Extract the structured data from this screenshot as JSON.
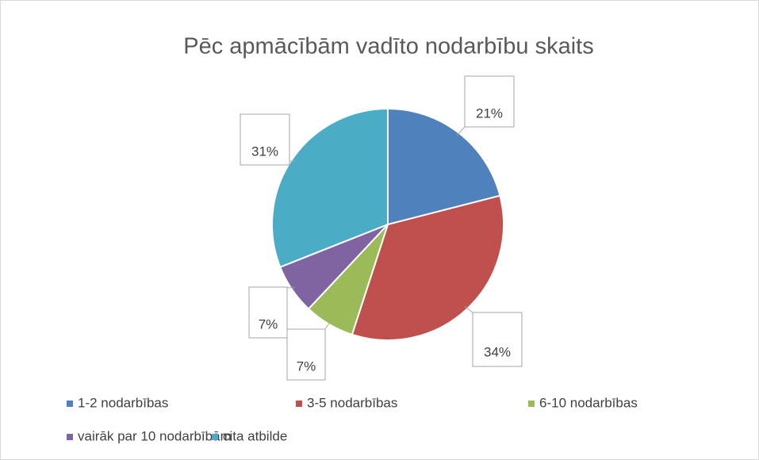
{
  "chart_data": {
    "type": "pie",
    "title": "Pēc apmācībām vadīto nodarbību skaits",
    "categories": [
      "1-2 nodarbības",
      "3-5 nodarbības",
      "6-10 nodarbības",
      "vairāk par 10 nodarbībām",
      "cita atbilde"
    ],
    "values": [
      21,
      34,
      7,
      7,
      31
    ],
    "value_labels": [
      "21%",
      "34%",
      "7%",
      "7%",
      "31%"
    ],
    "colors": [
      "#4f81bd",
      "#c0504d",
      "#9bbb59",
      "#8064a2",
      "#4bacc6"
    ],
    "legend": "bottom"
  }
}
